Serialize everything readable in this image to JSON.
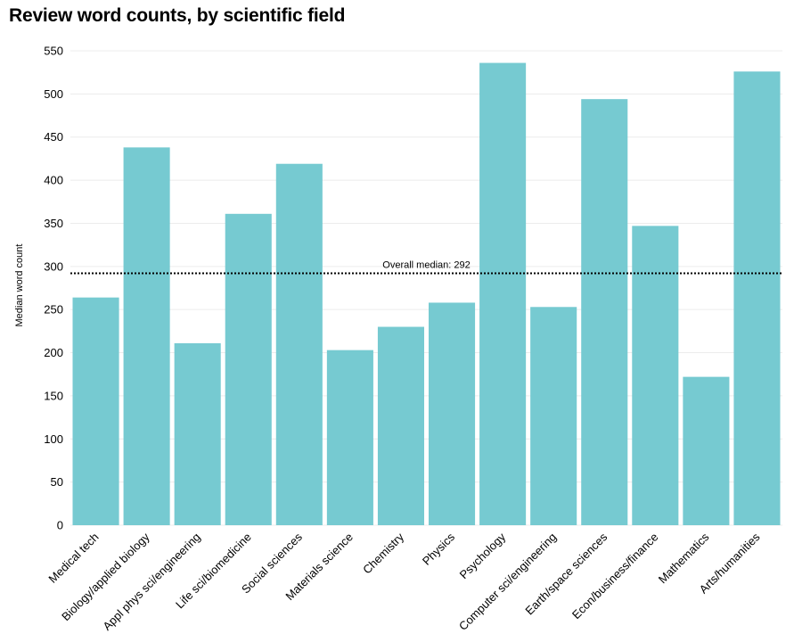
{
  "title": "Review word counts, by scientific field",
  "chart_data": {
    "type": "bar",
    "ylabel": "Median word count",
    "xlabel": "",
    "ylim": [
      0,
      550
    ],
    "yticks": [
      0,
      50,
      100,
      150,
      200,
      250,
      300,
      350,
      400,
      450,
      500,
      550
    ],
    "grid": true,
    "bar_color": "#76cad1",
    "categories": [
      "Medical tech",
      "Biology/applied biology",
      "Appl phys sci/engineering",
      "Life sci/biomedicine",
      "Social sciences",
      "Materials science",
      "Chemistry",
      "Physics",
      "Psychology",
      "Computer sci/engineering",
      "Earth/space sciences",
      "Econ/business/finance",
      "Mathematics",
      "Arts/humanities"
    ],
    "values": [
      264,
      438,
      211,
      361,
      419,
      203,
      230,
      258,
      536,
      253,
      494,
      347,
      172,
      526
    ],
    "reference_line": {
      "value": 292,
      "label": "Overall median: 292",
      "style": "dotted"
    }
  }
}
